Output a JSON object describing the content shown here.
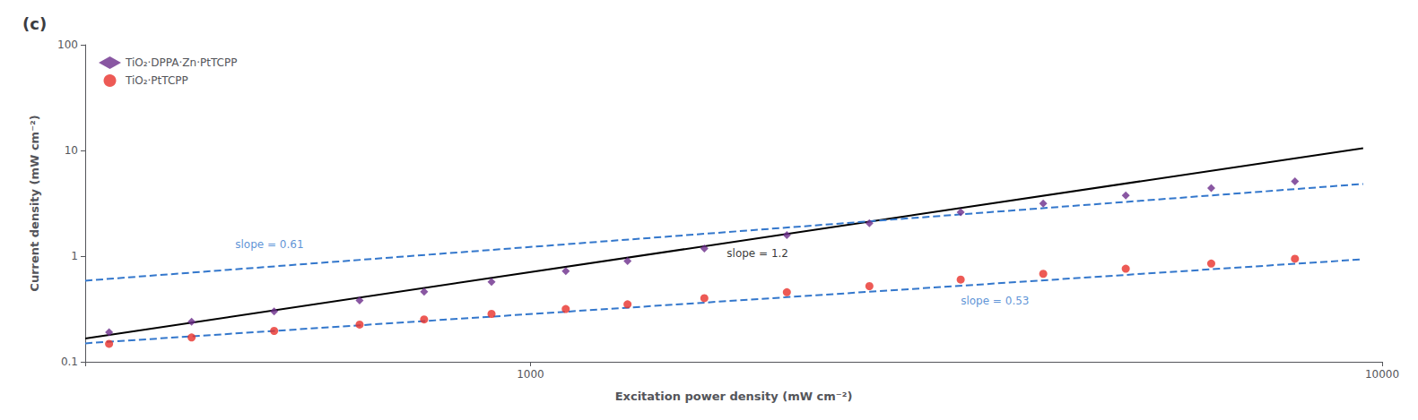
{
  "chart_data": {
    "type": "scatter",
    "title": "(c)",
    "xlabel": "Excitation power density (mW cm⁻²)",
    "ylabel": "Current density (mW cm⁻²)",
    "log": true,
    "xlim": [
      300,
      10000
    ],
    "xticks": [
      1000,
      10000
    ],
    "ylim": [
      0.1,
      100
    ],
    "yticks": [
      0.1,
      1,
      10,
      100
    ],
    "grid": false,
    "legend": "upper left",
    "series": [
      {
        "name": "TiO₂·DPPA·Zn·PtTCPP",
        "type": "scatter",
        "marker": "diamond",
        "color": "#6B2D8B",
        "x": [
          320,
          400,
          500,
          630,
          750,
          900,
          1100,
          1300,
          1600,
          2000,
          2500,
          3200,
          4000,
          5000,
          6300,
          7900
        ],
        "values": [
          0.19,
          0.24,
          0.3,
          0.38,
          0.46,
          0.57,
          0.72,
          0.9,
          1.18,
          1.58,
          2.05,
          2.6,
          3.15,
          3.75,
          4.4,
          5.1
        ]
      },
      {
        "name": "TiO₂·PtTCPP",
        "type": "scatter",
        "marker": "circle",
        "color": "#E8312A",
        "x": [
          320,
          400,
          500,
          630,
          750,
          900,
          1100,
          1300,
          1600,
          2000,
          2500,
          3200,
          4000,
          5000,
          6300,
          7900
        ],
        "values": [
          0.148,
          0.17,
          0.196,
          0.225,
          0.252,
          0.284,
          0.316,
          0.35,
          0.4,
          0.455,
          0.52,
          0.6,
          0.68,
          0.76,
          0.85,
          0.945
        ]
      },
      {
        "type": "line",
        "color": "#000000",
        "line_style": "solid",
        "x": [
          300,
          9500
        ],
        "values": [
          0.16641,
          10.518
        ]
      },
      {
        "type": "line",
        "color": "#3377CC",
        "line_style": "dashed",
        "x": [
          300,
          9500
        ],
        "values": [
          0.58582,
          4.8209
        ]
      },
      {
        "type": "line",
        "color": "#3377CC",
        "line_style": "dashed",
        "x": [
          300,
          9500
        ],
        "values": [
          0.14951,
          0.93325
        ]
      }
    ],
    "annotations": [
      {
        "text": "slope = 0.61",
        "x": 450,
        "y": 1.3,
        "color": "#3377CC"
      },
      {
        "text": "slope = 1.2",
        "x": 1700,
        "y": 1.05,
        "color": "#000000"
      },
      {
        "text": "slope = 0.53",
        "x": 3200,
        "y": 0.375,
        "color": "#3377CC"
      }
    ]
  }
}
